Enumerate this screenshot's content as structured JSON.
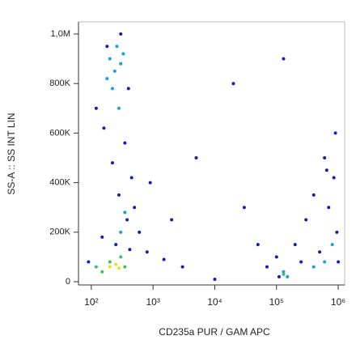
{
  "chart_data": {
    "type": "scatter",
    "x_label": "CD235a PUR / GAM APC",
    "y_label": "SS-A :: SS INT LIN",
    "xscale": "log",
    "xlim": [
      62,
      1270000
    ],
    "ylim": [
      -13000,
      1049000
    ],
    "xticks": [
      {
        "value": 100,
        "label": "10²"
      },
      {
        "value": 1000,
        "label": "10³"
      },
      {
        "value": 10000,
        "label": "10⁴"
      },
      {
        "value": 100000,
        "label": "10⁵"
      },
      {
        "value": 1000000,
        "label": "10⁶"
      }
    ],
    "yticks": [
      0,
      {
        "value": 200000,
        "label": "200K"
      },
      {
        "value": 400000,
        "label": "400K"
      },
      {
        "value": 600000,
        "label": "600K"
      },
      {
        "value": 800000,
        "label": "800K"
      },
      {
        "value": 1000000,
        "label": "1,0M"
      }
    ],
    "series": [
      {
        "color": "#1a1ab4",
        "x": [
          120,
          180,
          300,
          400,
          160,
          350,
          220,
          450,
          280,
          500,
          380,
          600,
          150,
          800,
          1500,
          3000,
          900,
          2000,
          20000,
          5000,
          50000,
          70000,
          110000,
          200000,
          400000,
          600000,
          900000,
          300000,
          700000,
          500000,
          850000,
          950000,
          250000,
          1000000,
          650000,
          100000,
          130000,
          10000,
          30000,
          90,
          250,
          420
        ],
        "values": [
          700000,
          950000,
          1000000,
          780000,
          620000,
          560000,
          480000,
          420000,
          350000,
          300000,
          250000,
          200000,
          180000,
          120000,
          90000,
          60000,
          400000,
          250000,
          800000,
          500000,
          150000,
          60000,
          20000,
          150000,
          350000,
          500000,
          600000,
          250000,
          300000,
          120000,
          420000,
          200000,
          80000,
          80000,
          450000,
          100000,
          900000,
          10000,
          300000,
          80000,
          150000,
          130000
        ]
      },
      {
        "color": "#19a0e0",
        "x": [
          200,
          260,
          240,
          300,
          220,
          280,
          330,
          180,
          130000,
          150000,
          600000,
          800000,
          400000,
          350,
          300
        ],
        "values": [
          900000,
          950000,
          850000,
          880000,
          780000,
          700000,
          920000,
          820000,
          40000,
          20000,
          80000,
          150000,
          60000,
          280000,
          200000
        ]
      },
      {
        "color": "#40c060",
        "x": [
          150,
          200,
          350,
          300,
          120,
          130000
        ],
        "values": [
          40000,
          80000,
          60000,
          100000,
          60000,
          30000
        ]
      },
      {
        "color": "#e8e020",
        "x": [
          200,
          250,
          280
        ],
        "values": [
          60000,
          70000,
          55000
        ]
      }
    ]
  }
}
